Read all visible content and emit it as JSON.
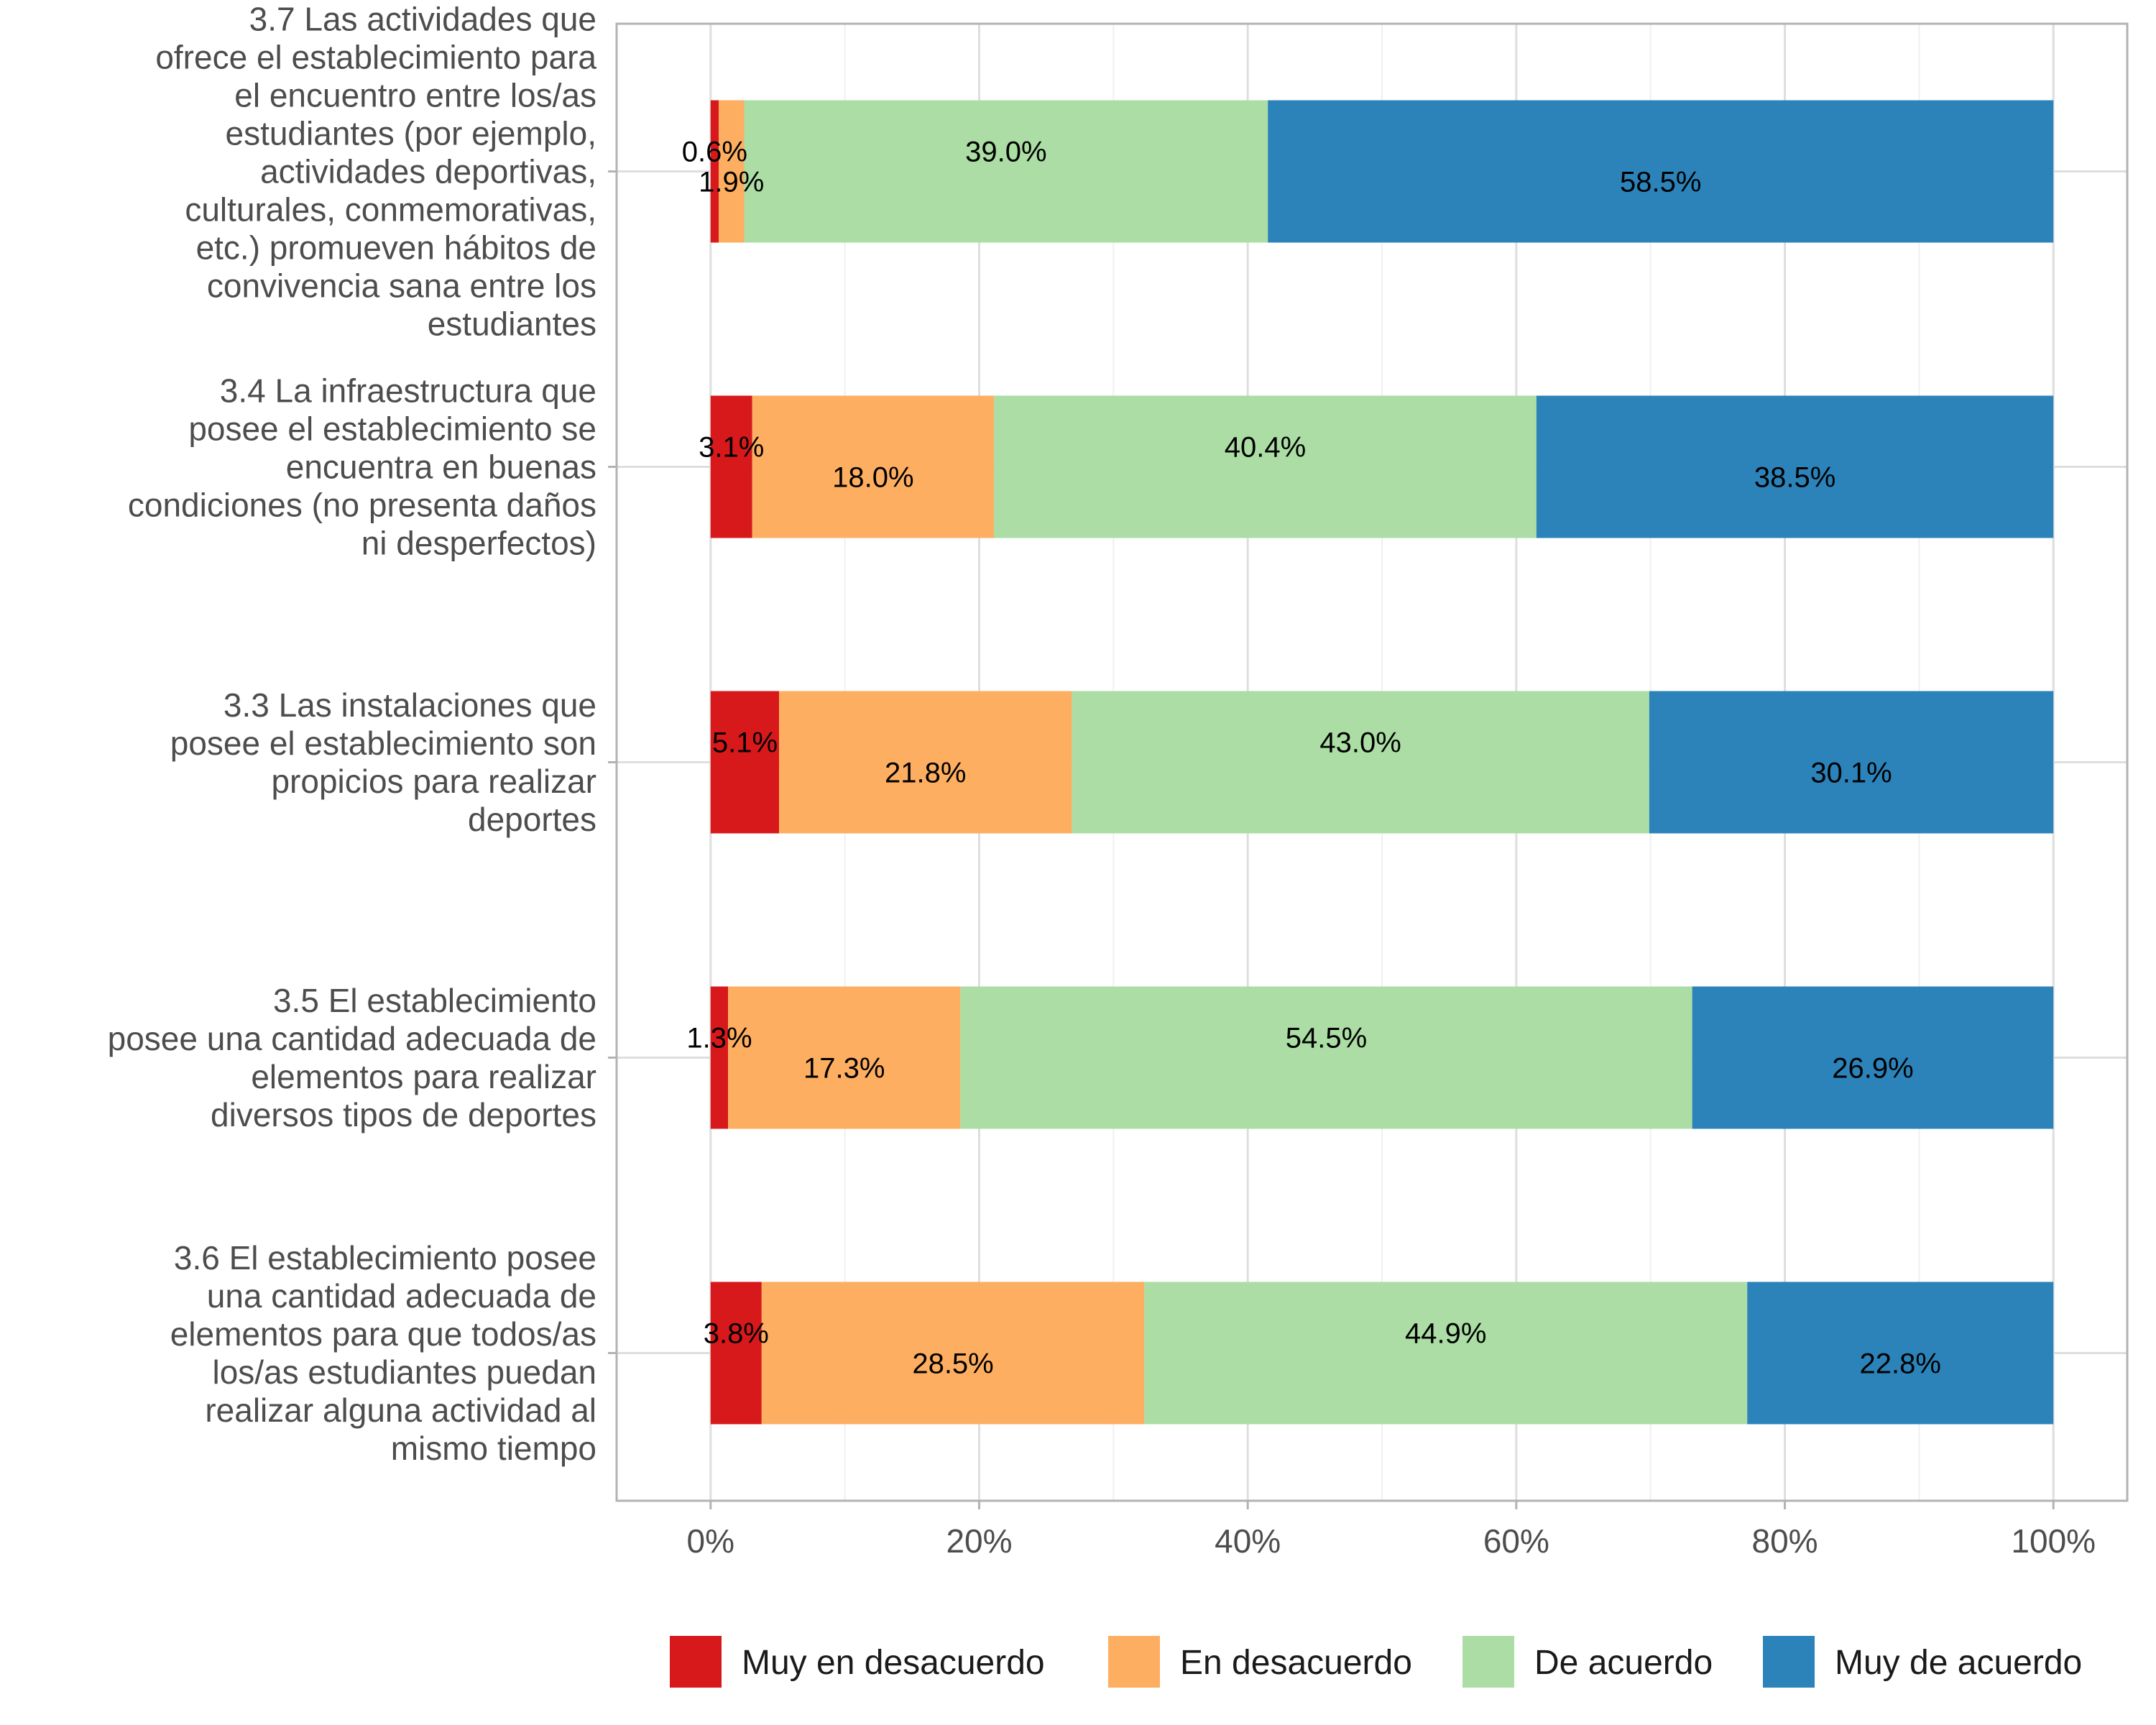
{
  "chart_data": {
    "type": "bar",
    "orientation": "horizontal",
    "stacked": true,
    "categories": [
      "3.7  Las actividades que ofrece el establecimiento para el encuentro entre los/as estudiantes (por ejemplo, actividades deportivas, culturales, conmemorativas, etc.) promueven hábitos de convivencia sana entre los estudiantes",
      "3.4  La infraestructura que posee el establecimiento se encuentra en buenas condiciones (no presenta daños ni desperfectos)",
      "3.3  Las instalaciones que posee el establecimiento son propicios para realizar deportes",
      "3.5   El establecimiento posee una cantidad adecuada de elementos para realizar diversos tipos de deportes",
      "3.6  El establecimiento posee una cantidad adecuada de elementos para que todos/as los/as estudiantes puedan realizar alguna actividad al mismo tiempo"
    ],
    "category_lines": [
      [
        "3.7  Las actividades que",
        "ofrece el establecimiento para",
        "el encuentro entre los/as",
        "estudiantes (por ejemplo,",
        "actividades deportivas,",
        "culturales, conmemorativas,",
        "etc.) promueven hábitos de",
        "convivencia sana entre los",
        "estudiantes"
      ],
      [
        "3.4  La infraestructura que",
        "posee el establecimiento se",
        "encuentra en buenas",
        "condiciones (no presenta daños",
        "ni desperfectos)"
      ],
      [
        "3.3  Las instalaciones que",
        "posee el establecimiento son",
        "propicios para realizar",
        "deportes"
      ],
      [
        "3.5   El establecimiento",
        "posee una cantidad adecuada de",
        "elementos para realizar",
        "diversos tipos de deportes"
      ],
      [
        "3.6  El establecimiento posee",
        "una cantidad adecuada de",
        "elementos para que todos/as",
        "los/as estudiantes puedan",
        "realizar alguna actividad al",
        "mismo tiempo"
      ]
    ],
    "series": [
      {
        "name": "Muy en desacuerdo",
        "color": "#d7191c",
        "values": [
          0.6,
          3.1,
          5.1,
          1.3,
          3.8
        ],
        "labels": [
          "0.6%",
          "3.1%",
          "5.1%",
          "1.3%",
          "3.8%"
        ]
      },
      {
        "name": "En desacuerdo",
        "color": "#fdae61",
        "values": [
          1.9,
          18.0,
          21.8,
          17.3,
          28.5
        ],
        "labels": [
          "1.9%",
          "18.0%",
          "21.8%",
          "17.3%",
          "28.5%"
        ]
      },
      {
        "name": "De acuerdo",
        "color": "#abdda4",
        "values": [
          39.0,
          40.4,
          43.0,
          54.5,
          44.9
        ],
        "labels": [
          "39.0%",
          "40.4%",
          "43.0%",
          "54.5%",
          "44.9%"
        ]
      },
      {
        "name": "Muy de acuerdo",
        "color": "#2b83ba",
        "values": [
          58.5,
          38.5,
          30.1,
          26.9,
          22.8
        ],
        "labels": [
          "58.5%",
          "38.5%",
          "30.1%",
          "26.9%",
          "22.8%"
        ]
      }
    ],
    "x_ticks": [
      0,
      20,
      40,
      60,
      80,
      100
    ],
    "x_tick_labels": [
      "0%",
      "20%",
      "40%",
      "60%",
      "80%",
      "100%"
    ],
    "xlim": [
      -7,
      105.5
    ],
    "title": "",
    "xlabel": "",
    "ylabel": "",
    "grid": true,
    "legend_position": "bottom"
  }
}
